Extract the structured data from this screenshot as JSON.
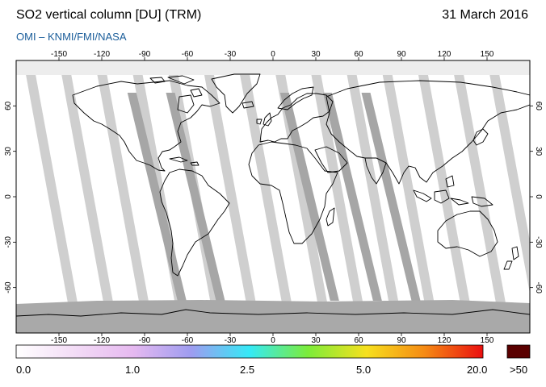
{
  "header": {
    "title": "SO2 vertical column [DU] (TRM)",
    "date": "31 March 2016",
    "source": "OMI  –  KNMI/FMI/NASA"
  },
  "map": {
    "lon_ticks_top": [
      "-150",
      "-120",
      "-90",
      "-60",
      "-30",
      "0",
      "30",
      "60",
      "90",
      "120",
      "150"
    ],
    "lon_ticks_bottom": [
      "-150",
      "-120",
      "-90",
      "-60",
      "-30",
      "0",
      "30",
      "60",
      "90",
      "120",
      "150"
    ],
    "lat_ticks_left": [
      "60",
      "30",
      "0",
      "-30",
      "-60"
    ],
    "lat_ticks_right": [
      "60",
      "30",
      "0",
      "-30",
      "-60"
    ],
    "colors": {
      "background": "#ffffff",
      "orbit_gap": "#cfcfcf",
      "orbit_dark": "#a6a6a6",
      "polar_night": "#a9a9a9",
      "coastline": "#000000"
    }
  },
  "colorbar": {
    "labels": [
      "0.0",
      "1.0",
      "2.5",
      "5.0",
      "20.0",
      ">50"
    ],
    "overflow_color": "#5a0000",
    "stops": [
      "#ffffff",
      "#f3dcf6",
      "#e6b9f0",
      "#9e9cf0",
      "#35e9f6",
      "#7cec3a",
      "#f6e01e",
      "#f58a14",
      "#ea0f0f"
    ]
  }
}
